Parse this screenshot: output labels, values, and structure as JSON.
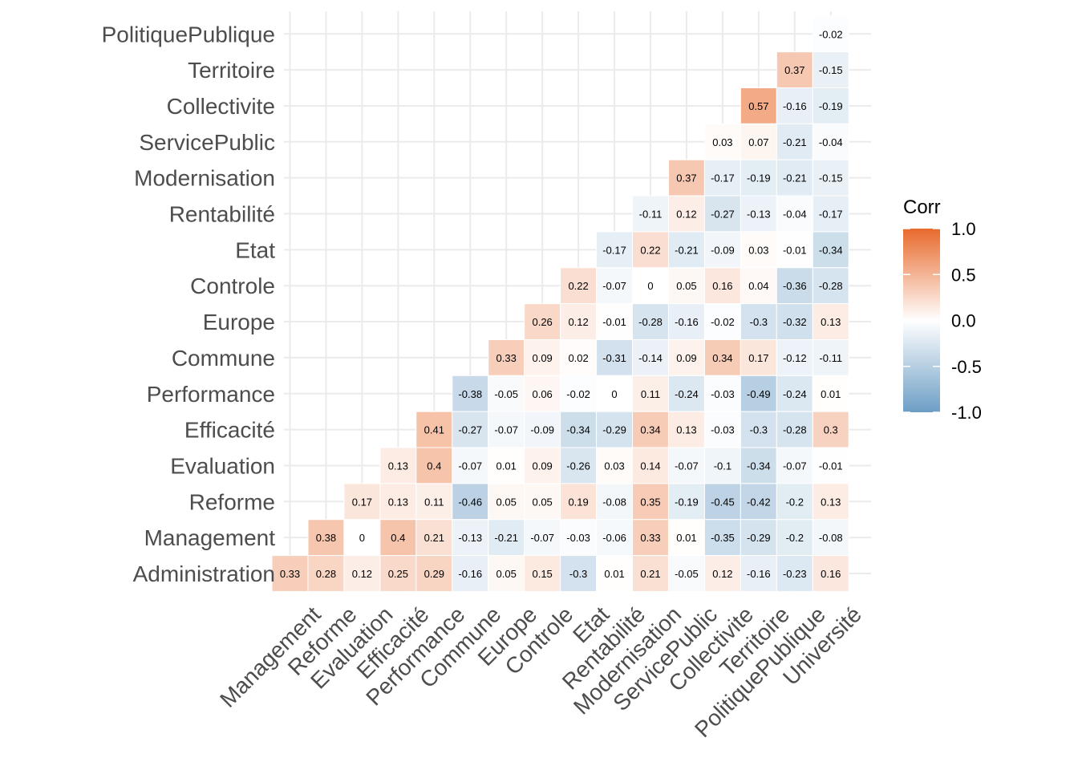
{
  "chart_data": {
    "type": "heatmap",
    "title": "",
    "xlabel": "",
    "ylabel": "",
    "x_categories": [
      "Management",
      "Reforme",
      "Evaluation",
      "Efficacité",
      "Performance",
      "Commune",
      "Europe",
      "Controle",
      "Etat",
      "Rentabilité",
      "Modernisation",
      "ServicePublic",
      "Collectivite",
      "Territoire",
      "PolitiquePublique",
      "Université"
    ],
    "y_categories": [
      "Administration",
      "Management",
      "Reforme",
      "Evaluation",
      "Efficacité",
      "Performance",
      "Commune",
      "Europe",
      "Controle",
      "Etat",
      "Rentabilité",
      "Modernisation",
      "ServicePublic",
      "Collectivite",
      "Territoire",
      "PolitiquePublique"
    ],
    "rows": [
      {
        "y": "PolitiquePublique",
        "x_start": "Université",
        "values": [
          -0.02
        ]
      },
      {
        "y": "Territoire",
        "x_start": "PolitiquePublique",
        "values": [
          0.37,
          -0.15
        ]
      },
      {
        "y": "Collectivite",
        "x_start": "Territoire",
        "values": [
          0.57,
          -0.16,
          -0.19
        ]
      },
      {
        "y": "ServicePublic",
        "x_start": "Collectivite",
        "values": [
          0.03,
          0.07,
          -0.21,
          -0.04
        ]
      },
      {
        "y": "Modernisation",
        "x_start": "ServicePublic",
        "values": [
          0.37,
          -0.17,
          -0.19,
          -0.21,
          -0.15
        ]
      },
      {
        "y": "Rentabilité",
        "x_start": "Modernisation",
        "values": [
          -0.11,
          0.12,
          -0.27,
          -0.13,
          -0.04,
          -0.17
        ]
      },
      {
        "y": "Etat",
        "x_start": "Rentabilité",
        "values": [
          -0.17,
          0.22,
          -0.21,
          -0.09,
          0.03,
          -0.01,
          -0.34
        ]
      },
      {
        "y": "Controle",
        "x_start": "Etat",
        "values": [
          0.22,
          -0.07,
          0,
          0.05,
          0.16,
          0.04,
          -0.36,
          -0.28
        ]
      },
      {
        "y": "Europe",
        "x_start": "Controle",
        "values": [
          0.26,
          0.12,
          -0.01,
          -0.28,
          -0.16,
          -0.02,
          -0.3,
          -0.32,
          0.13
        ]
      },
      {
        "y": "Commune",
        "x_start": "Europe",
        "values": [
          0.33,
          0.09,
          0.02,
          -0.31,
          -0.14,
          0.09,
          0.34,
          0.17,
          -0.12,
          -0.11
        ]
      },
      {
        "y": "Performance",
        "x_start": "Commune",
        "values": [
          -0.38,
          -0.05,
          0.06,
          -0.02,
          0,
          0.11,
          -0.24,
          -0.03,
          -0.49,
          -0.24,
          0.01
        ]
      },
      {
        "y": "Efficacité",
        "x_start": "Performance",
        "values": [
          0.41,
          -0.27,
          -0.07,
          -0.09,
          -0.34,
          -0.29,
          0.34,
          0.13,
          -0.03,
          -0.3,
          -0.28,
          0.3
        ]
      },
      {
        "y": "Evaluation",
        "x_start": "Efficacité",
        "values": [
          0.13,
          0.4,
          -0.07,
          0.01,
          0.09,
          -0.26,
          0.03,
          0.14,
          -0.07,
          -0.1,
          -0.34,
          -0.07,
          -0.01
        ]
      },
      {
        "y": "Reforme",
        "x_start": "Evaluation",
        "values": [
          0.17,
          0.13,
          0.11,
          -0.46,
          0.05,
          0.05,
          0.19,
          -0.08,
          0.35,
          -0.19,
          -0.45,
          -0.42,
          -0.2,
          0.13
        ]
      },
      {
        "y": "Management",
        "x_start": "Reforme",
        "values": [
          0.38,
          0,
          0.4,
          0.21,
          -0.13,
          -0.21,
          -0.07,
          -0.03,
          -0.06,
          0.33,
          0.01,
          -0.35,
          -0.29,
          -0.2,
          -0.08
        ]
      },
      {
        "y": "Administration",
        "x_start": "Management",
        "values": [
          0.33,
          0.28,
          0.12,
          0.25,
          0.29,
          -0.16,
          0.05,
          0.15,
          -0.3,
          0.01,
          0.21,
          -0.05,
          0.12,
          -0.16,
          -0.23,
          0.16
        ]
      }
    ],
    "color_scale": {
      "low": "#6d9ec5",
      "mid": "#ffffff",
      "high": "#e8692c",
      "limits": [
        -1,
        1
      ]
    },
    "legend": {
      "title": "Corr",
      "ticks": [
        1.0,
        0.5,
        0.0,
        -0.5,
        -1.0
      ],
      "tick_labels": [
        "1.0",
        "0.5",
        "0.0",
        "-0.5",
        "-1.0"
      ],
      "position": "right"
    },
    "grid": true
  }
}
